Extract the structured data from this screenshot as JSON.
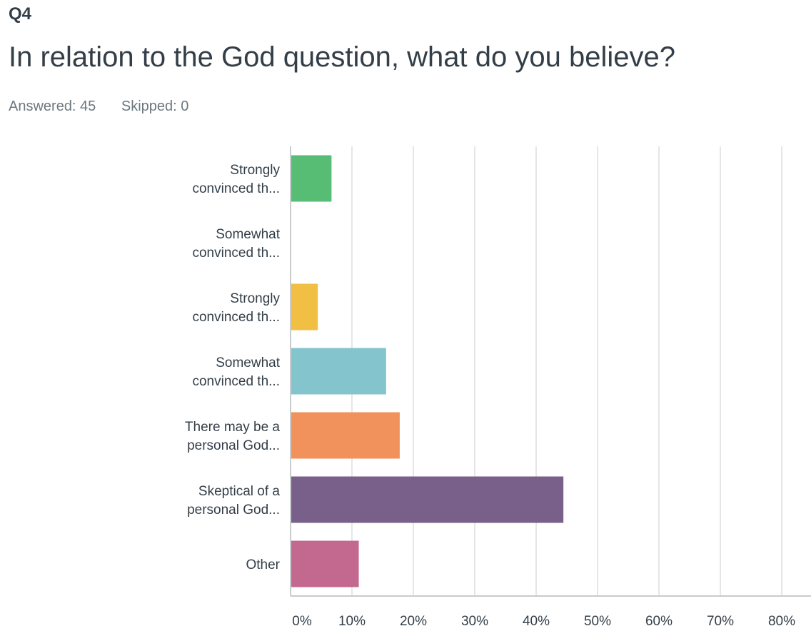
{
  "question": {
    "number": "Q4",
    "title": "In relation to the God question, what do you believe?"
  },
  "stats": {
    "answered": "Answered: 45",
    "skipped": "Skipped: 0"
  },
  "chart_data": {
    "type": "bar",
    "orientation": "horizontal",
    "categories": [
      [
        "Strongly",
        "convinced th..."
      ],
      [
        "Somewhat",
        "convinced th..."
      ],
      [
        "Strongly",
        "convinced th..."
      ],
      [
        "Somewhat",
        "convinced th..."
      ],
      [
        "There may be a",
        "personal God..."
      ],
      [
        "Skeptical of a",
        "personal God..."
      ],
      [
        "Other"
      ]
    ],
    "values": [
      6.67,
      0,
      4.44,
      15.56,
      17.78,
      44.44,
      11.11
    ],
    "colors": [
      "#57bd74",
      "#a2d3a6",
      "#f0bf43",
      "#84c5cd",
      "#f1925c",
      "#78608a",
      "#c3688f"
    ],
    "xlim": [
      0,
      80
    ],
    "xticks": [
      0,
      10,
      20,
      30,
      40,
      50,
      60,
      70,
      80
    ],
    "tick_format": "%",
    "grid": true
  }
}
